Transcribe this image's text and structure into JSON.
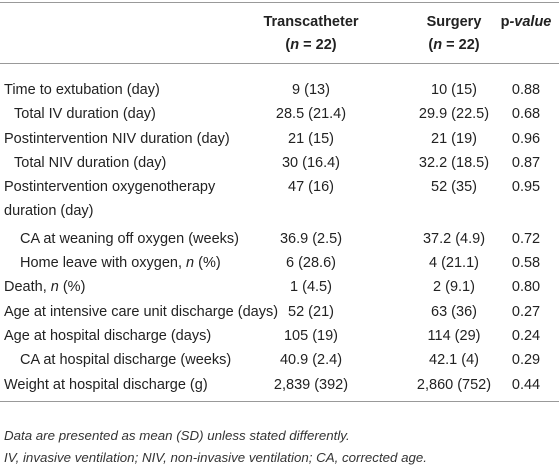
{
  "header": {
    "columns": [
      {
        "name": [
          "Transcatheter"
        ],
        "count": [
          "(",
          "n",
          " = 22)"
        ]
      },
      {
        "name": [
          "Surgery"
        ],
        "count": [
          "(",
          "n",
          " = 22)"
        ]
      },
      {
        "name": [
          "p",
          "-value"
        ]
      }
    ]
  },
  "table": {
    "rows": [
      {
        "label": [
          "Time to extubation (day)"
        ],
        "values": [
          "9 (13)",
          "10 (15)",
          "0.88"
        ]
      },
      {
        "label": [
          "Total IV duration (day)"
        ],
        "values": [
          "28.5 (21.4)",
          "29.9 (22.5)",
          "0.68"
        ]
      },
      {
        "label": [
          "Postintervention NIV duration (day)"
        ],
        "values": [
          "21 (15)",
          "21 (19)",
          "0.96"
        ]
      },
      {
        "label": [
          "Total NIV duration (day)"
        ],
        "values": [
          "30 (16.4)",
          "32.2 (18.5)",
          "0.87"
        ]
      },
      {
        "label": [
          "Postintervention oxygenotherapy duration (day)"
        ],
        "values": [
          "47 (16)",
          "52 (35)",
          "0.95"
        ]
      },
      {
        "label": [
          "CA at weaning off oxygen (weeks)"
        ],
        "values": [
          "36.9 (2.5)",
          "37.2 (4.9)",
          "0.72"
        ]
      },
      {
        "label": [
          "Home leave with oxygen, ",
          "n",
          " (%)"
        ],
        "values": [
          "6 (28.6)",
          "4 (21.1)",
          "0.58"
        ]
      },
      {
        "label": [
          "Death, ",
          "n",
          " (%)"
        ],
        "values": [
          "1 (4.5)",
          "2 (9.1)",
          "0.80"
        ]
      },
      {
        "label": [
          "Age at intensive care unit discharge (days)"
        ],
        "values": [
          "52 (21)",
          "63 (36)",
          "0.27"
        ]
      },
      {
        "label": [
          "Age at hospital discharge (days)"
        ],
        "values": [
          "105 (19)",
          "114 (29)",
          "0.24"
        ]
      },
      {
        "label": [
          "CA at hospital discharge (weeks)"
        ],
        "values": [
          "40.9 (2.4)",
          "42.1 (4)",
          "0.29"
        ]
      },
      {
        "label": [
          "Weight at hospital discharge (g)"
        ],
        "values": [
          "2,839 (392)",
          "2,860 (752)",
          "0.44"
        ]
      }
    ]
  },
  "footnotes": [
    [
      "Data are presented as mean (SD) unless stated differently."
    ],
    [
      "IV, invasive ventilation; NIV, non-invasive ventilation; CA, corrected age."
    ]
  ]
}
